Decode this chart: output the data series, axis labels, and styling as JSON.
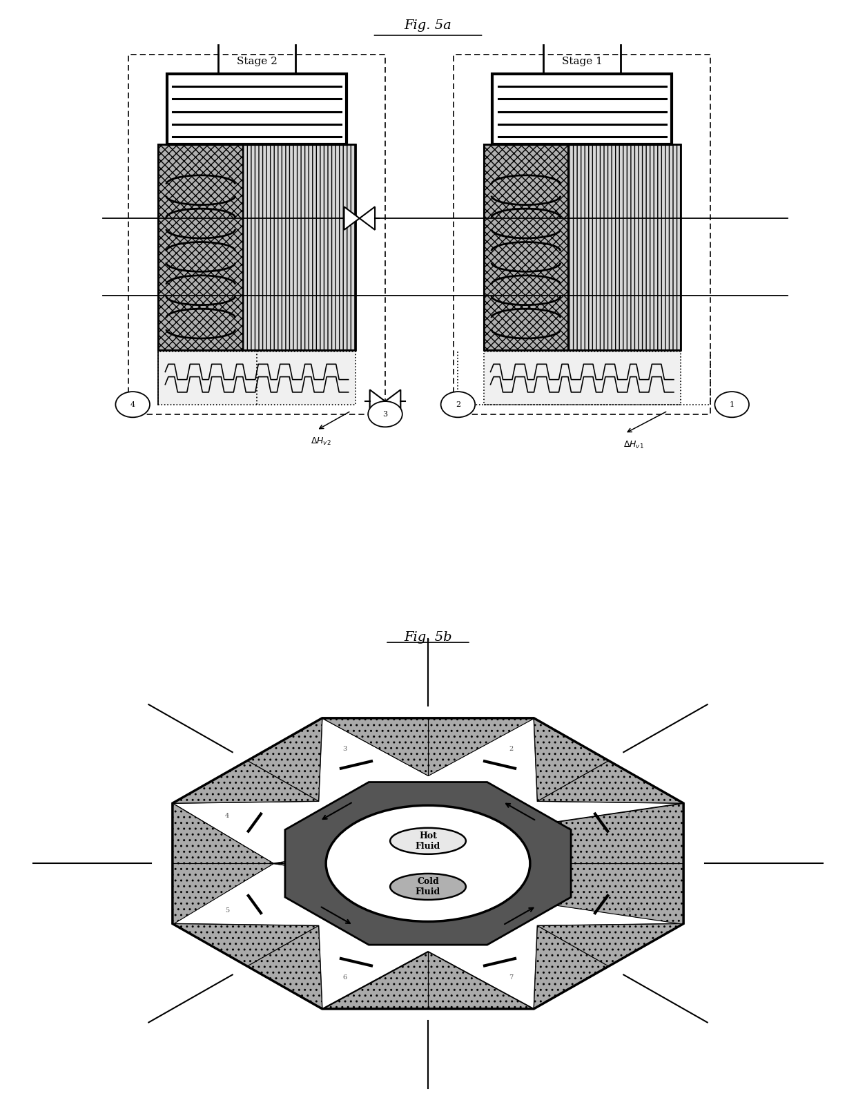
{
  "fig_title_a": "Fig. 5a",
  "fig_title_b": "Fig. 5b",
  "stage2_label": "Stage 2",
  "stage1_label": "Stage 1",
  "hot_fluid_label": "Hot\nFluid",
  "cold_fluid_label": "Cold\nFluid",
  "bg_color": "#ffffff",
  "dark_color": "#333333",
  "medium_gray": "#999999",
  "light_gray": "#cccccc"
}
